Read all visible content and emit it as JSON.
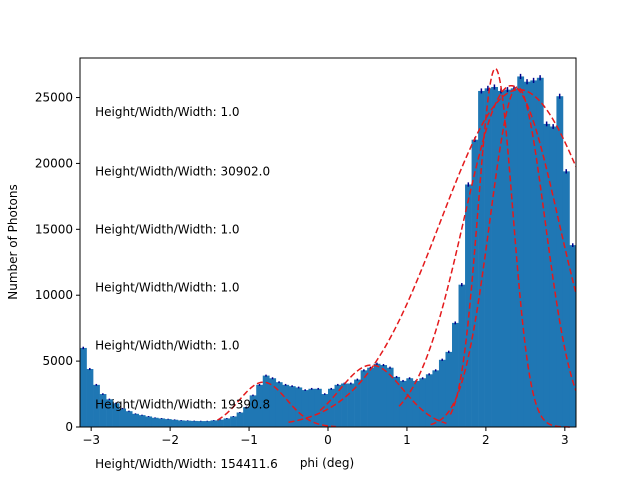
{
  "chart_data": {
    "type": "bar",
    "title": "",
    "xlabel": "phi (deg)",
    "ylabel": "Number of Photons",
    "xlim": [
      -3.1416,
      3.1416
    ],
    "ylim": [
      0,
      28000
    ],
    "xticks": [
      -3,
      -2,
      -1,
      0,
      1,
      2,
      3
    ],
    "yticks": [
      0,
      5000,
      10000,
      15000,
      20000,
      25000
    ],
    "grid": false,
    "bar_color": "#1f77b4",
    "errorbar_color": "#00008b",
    "fit_color": "#e41a1c",
    "bins": {
      "x_start": -3.1416,
      "x_end": 3.1416,
      "counts": [
        6000,
        4400,
        3200,
        2500,
        2100,
        1800,
        1400,
        1200,
        1000,
        900,
        800,
        700,
        650,
        600,
        550,
        500,
        480,
        460,
        450,
        450,
        500,
        550,
        650,
        800,
        1100,
        1500,
        2400,
        3200,
        3900,
        3700,
        3400,
        3200,
        3100,
        3000,
        2800,
        2900,
        2900,
        2500,
        2900,
        3200,
        3300,
        3300,
        3600,
        4300,
        4500,
        4800,
        4700,
        4500,
        3800,
        3500,
        3700,
        3500,
        3700,
        4000,
        4300,
        5100,
        5700,
        7900,
        10800,
        18400,
        21800,
        25500,
        25700,
        25800,
        25500,
        25600,
        25700,
        26600,
        26200,
        26300,
        26500,
        23000,
        22800,
        25100,
        19400,
        13800
      ]
    },
    "fit_curves": [
      {
        "type": "gaussian",
        "amplitude": 3400,
        "mean": -0.82,
        "sigma": 0.3,
        "x_range": [
          -1.4,
          0.1
        ]
      },
      {
        "type": "gaussian",
        "amplitude": 4700,
        "mean": 0.55,
        "sigma": 0.4,
        "x_range": [
          -0.1,
          1.5
        ]
      },
      {
        "type": "gaussian",
        "amplitude": 25800,
        "mean": 2.4,
        "sigma": 0.35,
        "x_range": [
          1.3,
          3.14
        ]
      },
      {
        "type": "gaussian",
        "amplitude": 25900,
        "mean": 2.32,
        "sigma": 0.6,
        "x_range": [
          0.9,
          3.14
        ]
      },
      {
        "type": "gaussian",
        "amplitude": 25600,
        "mean": 2.42,
        "sigma": 1.0,
        "x_range": [
          -0.5,
          3.14
        ]
      },
      {
        "type": "gaussian",
        "amplitude": 27200,
        "mean": 2.12,
        "sigma": 0.22,
        "x_range": [
          1.55,
          3.1
        ]
      }
    ],
    "annotations": [
      {
        "text": "Height/Width/Width: 1.0",
        "x": -2.95,
        "y": 23900
      },
      {
        "text": "Height/Width/Width: 30902.0",
        "x": -2.95,
        "y": 19400
      },
      {
        "text": "Height/Width/Width: 1.0",
        "x": -2.95,
        "y": 15000
      },
      {
        "text": "Height/Width/Width: 1.0",
        "x": -2.95,
        "y": 10600
      },
      {
        "text": "Height/Width/Width: 1.0",
        "x": -2.95,
        "y": 6200
      },
      {
        "text": "Height/Width/Width: 19390.8",
        "x": -2.95,
        "y": 1700
      },
      {
        "text": "Height/Width/Width: 154411.6",
        "x": -2.95,
        "y": -2800
      }
    ]
  }
}
